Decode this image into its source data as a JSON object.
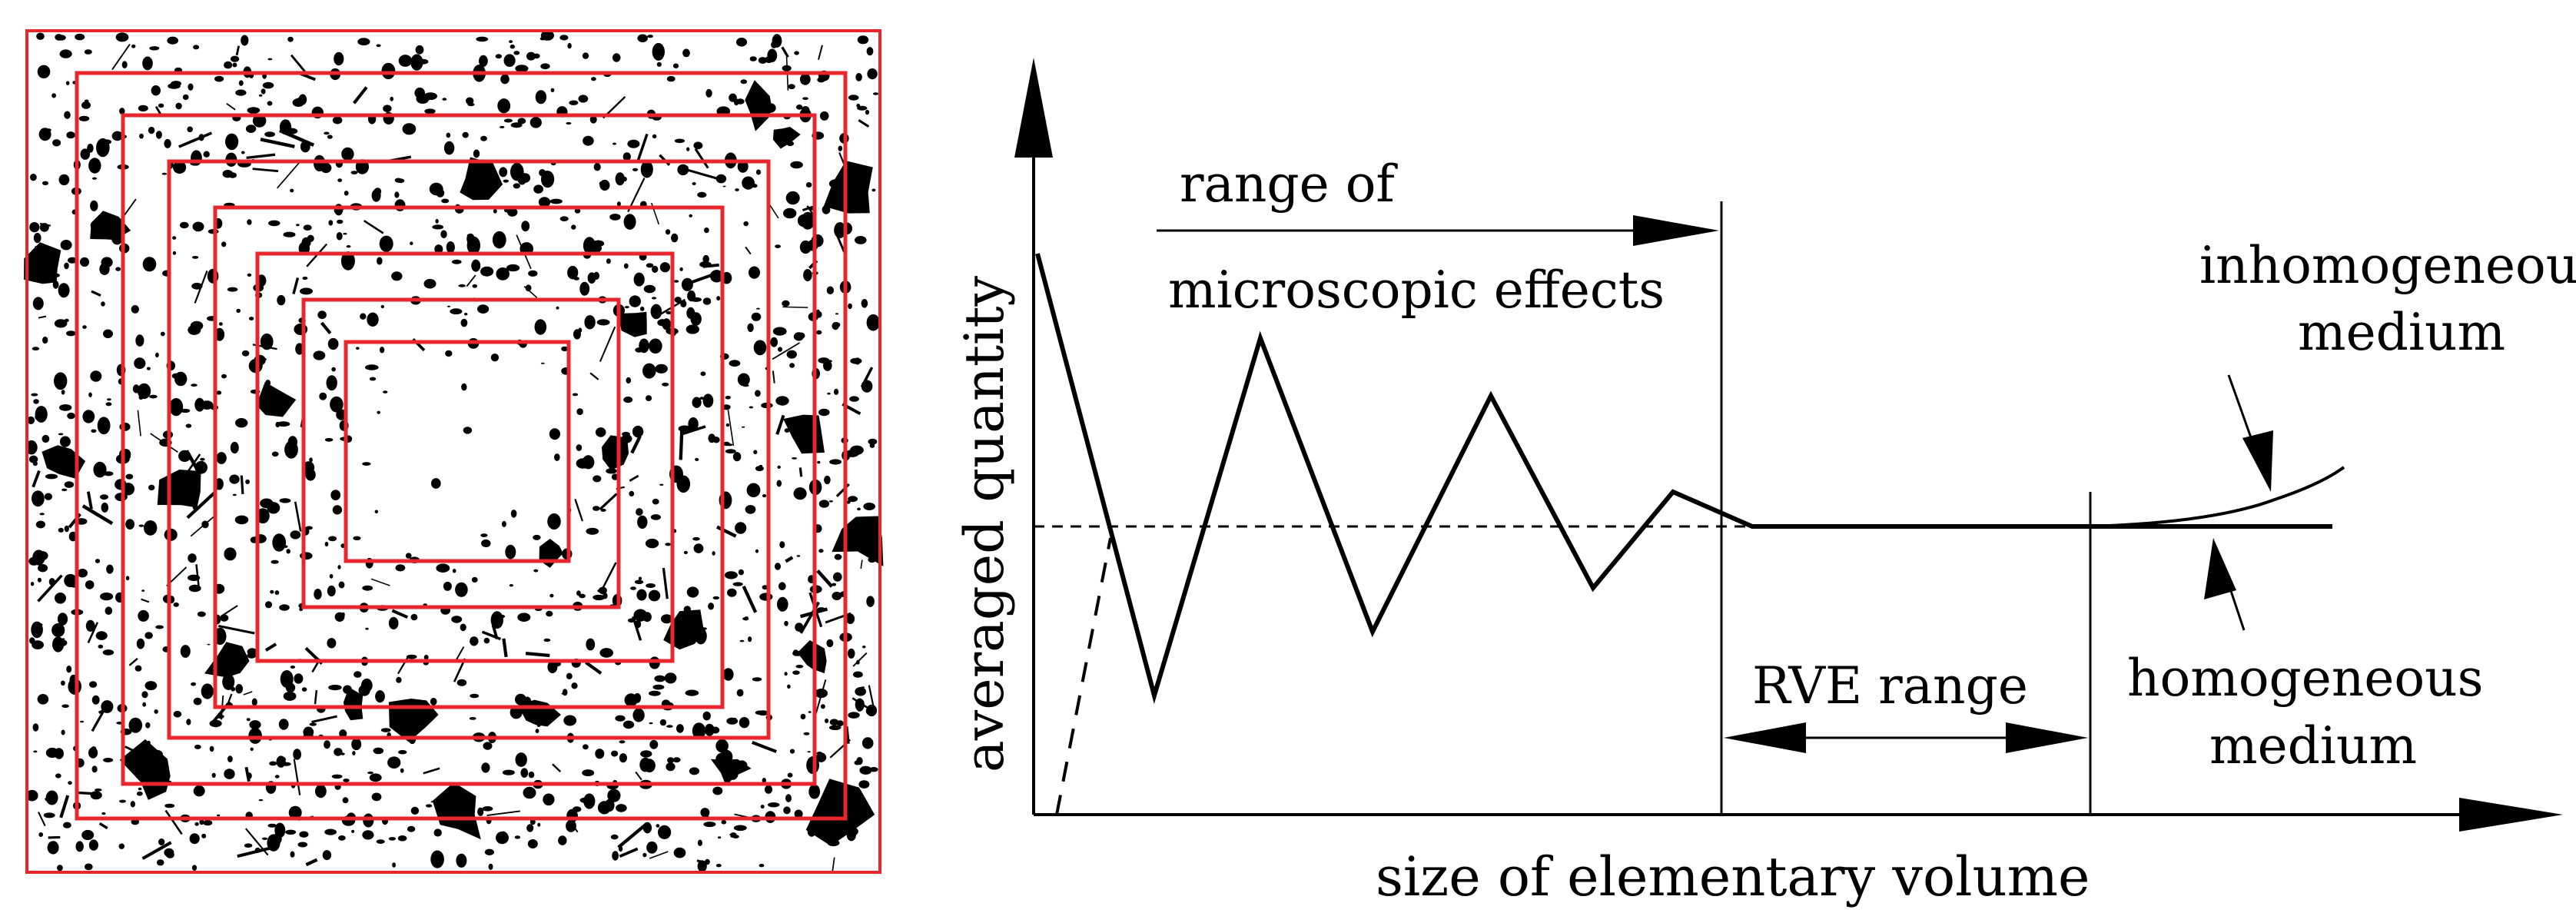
{
  "left_panel": {
    "box_color": "#e8262b",
    "pore_color": "#000000",
    "box_count": 8
  },
  "chart_data": {
    "type": "line",
    "title": "",
    "xlabel": "size of elementary volume",
    "ylabel": "averaged quantity",
    "annotations": {
      "microscopic_line1": "range of",
      "microscopic_line2": "microscopic effects",
      "rve_range": "RVE range",
      "inhomogeneous_line1": "inhomogeneous",
      "inhomogeneous_line2": "medium",
      "homogeneous_line1": "homogeneous",
      "homogeneous_line2": "medium"
    }
  }
}
